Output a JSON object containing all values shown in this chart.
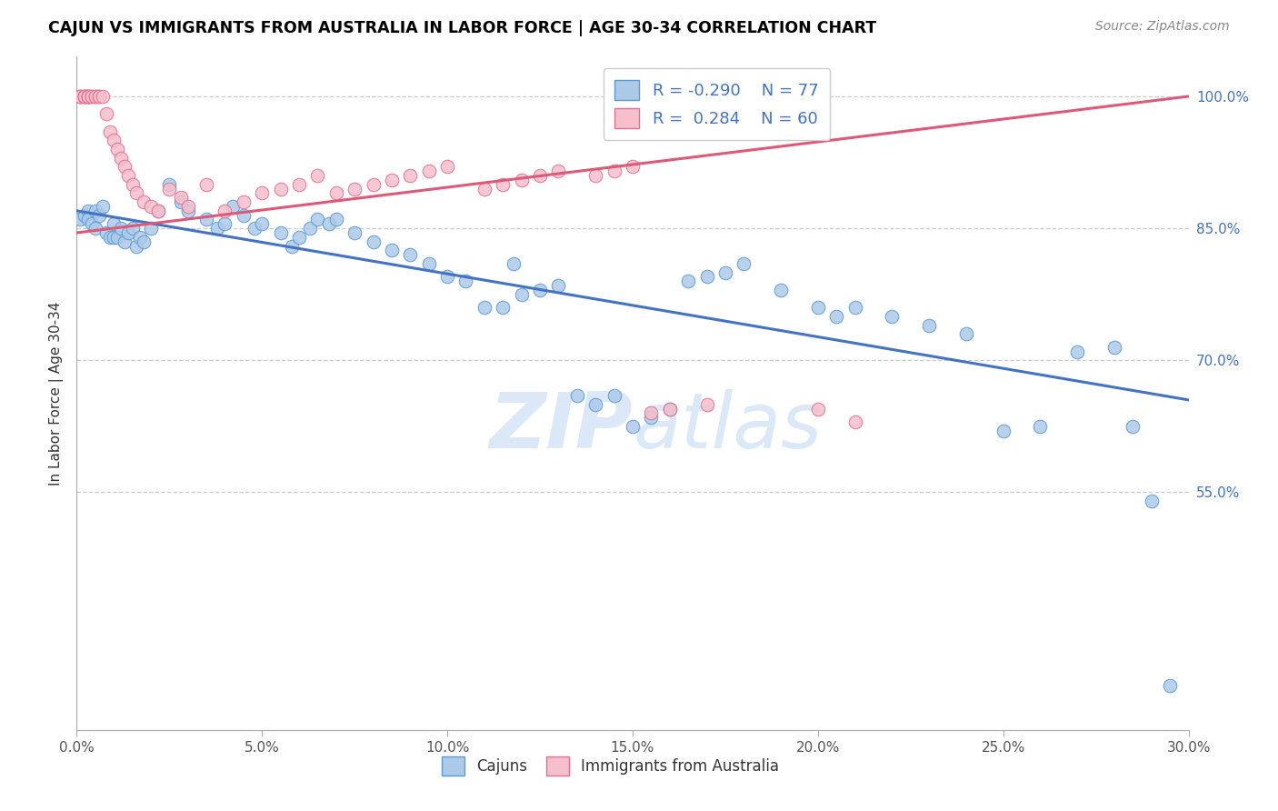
{
  "title": "CAJUN VS IMMIGRANTS FROM AUSTRALIA IN LABOR FORCE | AGE 30-34 CORRELATION CHART",
  "source": "Source: ZipAtlas.com",
  "ylabel": "In Labor Force | Age 30-34",
  "xlim": [
    0.0,
    0.3
  ],
  "ylim": [
    0.28,
    1.045
  ],
  "xticks": [
    0.0,
    0.05,
    0.1,
    0.15,
    0.2,
    0.25,
    0.3
  ],
  "xticklabels": [
    "0.0%",
    "5.0%",
    "10.0%",
    "15.0%",
    "20.0%",
    "25.0%",
    "30.0%"
  ],
  "yticks_right": [
    0.55,
    0.7,
    0.85,
    1.0
  ],
  "yticklabels_right": [
    "55.0%",
    "70.0%",
    "85.0%",
    "100.0%"
  ],
  "cajun_R": -0.29,
  "cajun_N": 77,
  "australia_R": 0.284,
  "australia_N": 60,
  "cajun_color": "#adc9e8",
  "cajun_edge_color": "#5b9bd5",
  "cajun_line_color": "#4472c4",
  "australia_color": "#f5bfcc",
  "australia_edge_color": "#e07090",
  "australia_line_color": "#e05878",
  "watermark_color": "#dae8f7",
  "legend_label_cajun": "Cajuns",
  "legend_label_australia": "Immigrants from Australia",
  "cajun_x": [
    0.001,
    0.002,
    0.003,
    0.003,
    0.004,
    0.005,
    0.005,
    0.006,
    0.007,
    0.008,
    0.009,
    0.01,
    0.01,
    0.011,
    0.012,
    0.013,
    0.014,
    0.015,
    0.016,
    0.017,
    0.018,
    0.02,
    0.022,
    0.025,
    0.028,
    0.03,
    0.035,
    0.038,
    0.04,
    0.042,
    0.045,
    0.048,
    0.05,
    0.055,
    0.058,
    0.06,
    0.063,
    0.065,
    0.068,
    0.07,
    0.075,
    0.08,
    0.085,
    0.09,
    0.095,
    0.1,
    0.105,
    0.11,
    0.115,
    0.118,
    0.12,
    0.125,
    0.13,
    0.135,
    0.14,
    0.145,
    0.15,
    0.155,
    0.16,
    0.165,
    0.17,
    0.175,
    0.18,
    0.19,
    0.2,
    0.205,
    0.21,
    0.22,
    0.23,
    0.24,
    0.25,
    0.26,
    0.27,
    0.28,
    0.285,
    0.29,
    0.295
  ],
  "cajun_y": [
    0.86,
    0.865,
    0.87,
    0.86,
    0.855,
    0.87,
    0.85,
    0.865,
    0.875,
    0.845,
    0.84,
    0.855,
    0.84,
    0.84,
    0.85,
    0.835,
    0.845,
    0.85,
    0.83,
    0.84,
    0.835,
    0.85,
    0.87,
    0.9,
    0.88,
    0.87,
    0.86,
    0.85,
    0.855,
    0.875,
    0.865,
    0.85,
    0.855,
    0.845,
    0.83,
    0.84,
    0.85,
    0.86,
    0.855,
    0.86,
    0.845,
    0.835,
    0.825,
    0.82,
    0.81,
    0.795,
    0.79,
    0.76,
    0.76,
    0.81,
    0.775,
    0.78,
    0.785,
    0.66,
    0.65,
    0.66,
    0.625,
    0.635,
    0.645,
    0.79,
    0.795,
    0.8,
    0.81,
    0.78,
    0.76,
    0.75,
    0.76,
    0.75,
    0.74,
    0.73,
    0.62,
    0.625,
    0.71,
    0.715,
    0.625,
    0.54,
    0.33
  ],
  "australia_x": [
    0.001,
    0.001,
    0.001,
    0.002,
    0.002,
    0.002,
    0.002,
    0.003,
    0.003,
    0.003,
    0.003,
    0.004,
    0.004,
    0.005,
    0.005,
    0.006,
    0.006,
    0.007,
    0.008,
    0.009,
    0.01,
    0.011,
    0.012,
    0.013,
    0.014,
    0.015,
    0.016,
    0.018,
    0.02,
    0.022,
    0.025,
    0.028,
    0.03,
    0.035,
    0.04,
    0.045,
    0.05,
    0.055,
    0.06,
    0.065,
    0.07,
    0.075,
    0.08,
    0.085,
    0.09,
    0.095,
    0.1,
    0.11,
    0.115,
    0.12,
    0.125,
    0.13,
    0.14,
    0.145,
    0.15,
    0.155,
    0.16,
    0.17,
    0.2,
    0.21
  ],
  "australia_y": [
    1.0,
    1.0,
    1.0,
    1.0,
    1.0,
    1.0,
    1.0,
    1.0,
    1.0,
    1.0,
    1.0,
    1.0,
    1.0,
    1.0,
    1.0,
    1.0,
    1.0,
    1.0,
    0.98,
    0.96,
    0.95,
    0.94,
    0.93,
    0.92,
    0.91,
    0.9,
    0.89,
    0.88,
    0.875,
    0.87,
    0.895,
    0.885,
    0.875,
    0.9,
    0.87,
    0.88,
    0.89,
    0.895,
    0.9,
    0.91,
    0.89,
    0.895,
    0.9,
    0.905,
    0.91,
    0.915,
    0.92,
    0.895,
    0.9,
    0.905,
    0.91,
    0.915,
    0.91,
    0.915,
    0.92,
    0.64,
    0.645,
    0.65,
    0.645,
    0.63
  ]
}
